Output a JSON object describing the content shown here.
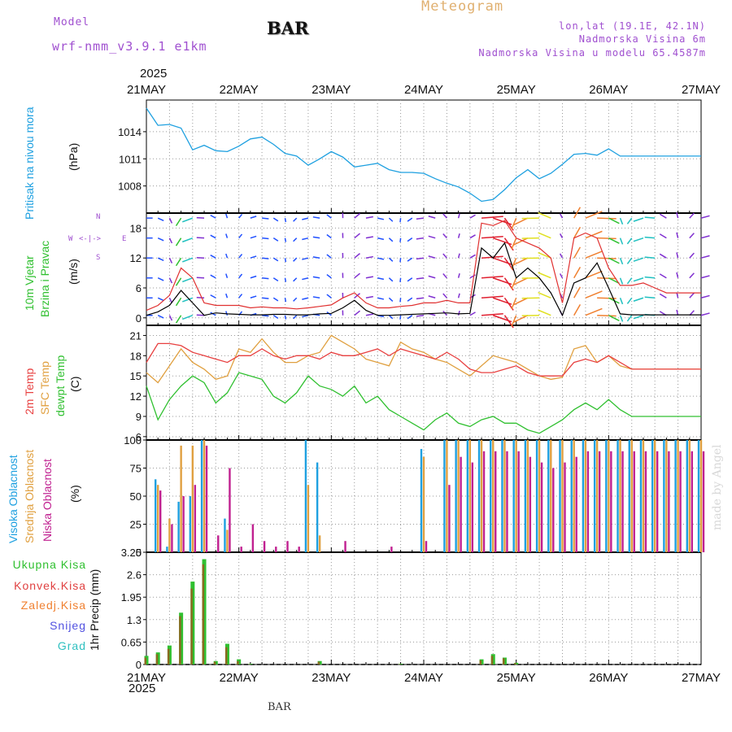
{
  "header": {
    "model_label": "Model",
    "model_name": "wrf-nmm_v3.9.1 e1km",
    "station": "BAR",
    "subtitle": "Meteogram",
    "lonlat": "lon,lat (19.1E, 42.1N)",
    "altitude": "Nadmorska Visina 6m",
    "model_altitude": "Nadmorska Visina u modelu 65.4587m",
    "footer_station": "BAR",
    "made_by": "made by Angel"
  },
  "time_axis": {
    "year_top": "2025",
    "year_bottom": "2025",
    "labels": [
      "21MAY",
      "22MAY",
      "23MAY",
      "24MAY",
      "25MAY",
      "26MAY",
      "27MAY"
    ]
  },
  "colors": {
    "pressure": "#1ea0e0",
    "wind_speed": "#000000",
    "gust": "#e03030",
    "t2m": "#e84040",
    "sfc": "#e0a040",
    "dewpt": "#30c030",
    "high_cloud": "#1ea0e0",
    "mid_cloud": "#e0a040",
    "low_cloud": "#c02090",
    "total_precip": "#30c030",
    "conv_precip": "#e04040"
  },
  "panels": {
    "pressure": {
      "label": "Pritisak na nivou mora",
      "unit": "(hPa)"
    },
    "wind": {
      "label1": "10m Vjetar",
      "label2": "Brzina i Pravac",
      "unit": "(m/s)",
      "compass_n": "N",
      "compass_s": "S",
      "compass_w": "W",
      "compass_e": "E"
    },
    "temp": {
      "label1": "2m Temp",
      "label2": "SFC Temp",
      "label3": "dewpt Temp",
      "unit": "(C)"
    },
    "cloud": {
      "label1": "Visoka Oblacnost",
      "label2": "Srednja Oblacnost",
      "label3": "Niska Oblacnost",
      "unit": "(%)"
    },
    "precip": {
      "axis_label": "1hr Precip (mm)",
      "legend": [
        "Ukupna Kisa",
        "Konvek.Kisa",
        "Zaledj.Kisa",
        "Snijeg",
        "Grad"
      ],
      "legend_colors": [
        "#30c030",
        "#e04040",
        "#f08030",
        "#5050e0",
        "#30c0c0"
      ]
    }
  },
  "chart_data": [
    {
      "type": "line",
      "title": "",
      "ylabel": "Pritisak na nivou mora (hPa)",
      "ylim": [
        1005,
        1017.5
      ],
      "yticks": [
        1008,
        1011,
        1014
      ],
      "x": [
        0,
        3,
        6,
        9,
        12,
        15,
        18,
        21,
        24,
        27,
        30,
        33,
        36,
        39,
        42,
        45,
        48,
        51,
        54,
        57,
        60,
        63,
        66,
        69,
        72,
        75,
        78,
        81,
        84,
        87,
        90,
        93,
        96,
        99,
        102,
        105,
        108,
        111,
        114,
        117,
        120,
        123,
        126,
        129,
        132,
        135,
        138,
        141,
        144
      ],
      "series": [
        {
          "name": "",
          "values": [
            1016.6,
            1014.7,
            1014.8,
            1014.4,
            1012.0,
            1012.5,
            1011.9,
            1011.8,
            1012.4,
            1013.2,
            1013.4,
            1012.6,
            1011.6,
            1011.3,
            1010.3,
            1011.0,
            1011.8,
            1011.2,
            1010.1,
            1010.3,
            1010.5,
            1009.8,
            1009.5,
            1009.5,
            1009.4,
            1008.8,
            1008.3,
            1007.9,
            1007.2,
            1006.3,
            1006.5,
            1007.6,
            1008.9,
            1009.8,
            1008.8,
            1009.4,
            1010.4,
            1011.5,
            1011.6,
            1011.4,
            1012.1,
            1011.3,
            1011.3,
            1011.3,
            1011.3,
            1011.3,
            1011.3,
            1011.3,
            1011.3
          ]
        }
      ]
    },
    {
      "type": "line",
      "title": "",
      "ylabel": "10m Vjetar Brzina i Pravac (m/s)",
      "ylim": [
        -1.5,
        21
      ],
      "yticks": [
        0,
        6,
        12,
        18
      ],
      "x": [
        0,
        3,
        6,
        9,
        12,
        15,
        18,
        21,
        24,
        27,
        30,
        33,
        36,
        39,
        42,
        45,
        48,
        51,
        54,
        57,
        60,
        63,
        66,
        69,
        72,
        75,
        78,
        81,
        84,
        87,
        90,
        93,
        96,
        99,
        102,
        105,
        108,
        111,
        114,
        117,
        120,
        123,
        126,
        129,
        132,
        135,
        138,
        141,
        144
      ],
      "series": [
        {
          "name": "",
          "values": [
            0.5,
            1.2,
            2.5,
            5.5,
            3.0,
            0.5,
            1.0,
            0.8,
            0.7,
            0.6,
            0.6,
            0.7,
            0.7,
            0.6,
            0.6,
            0.8,
            0.9,
            2.0,
            3.5,
            1.5,
            0.5,
            0.5,
            0.6,
            0.7,
            0.8,
            0.9,
            1.0,
            0.8,
            0.9,
            14.0,
            12.0,
            15.0,
            8.0,
            10.0,
            8.0,
            5.0,
            0.5,
            7.0,
            8.0,
            11.0,
            6.0,
            0.8,
            0.6,
            0.6,
            0.6,
            0.6,
            0.6,
            0.6,
            0.6
          ]
        },
        {
          "name": "",
          "values": [
            1.5,
            2.5,
            4.5,
            10.0,
            8.0,
            3.0,
            2.5,
            2.5,
            2.5,
            2.0,
            2.2,
            2.0,
            2.0,
            1.8,
            2.0,
            2.3,
            2.6,
            4.0,
            5.0,
            3.0,
            2.0,
            2.0,
            2.3,
            2.5,
            3.0,
            3.0,
            3.5,
            3.0,
            3.0,
            19.0,
            18.5,
            19.5,
            16.0,
            15.0,
            14.0,
            12.0,
            3.0,
            16.0,
            17.0,
            16.0,
            10.0,
            6.5,
            6.5,
            7.0,
            6.0,
            5.0,
            5.0,
            5.0,
            5.0
          ]
        }
      ]
    },
    {
      "type": "line",
      "title": "",
      "ylabel": "2m Temp / SFC Temp / dewpt Temp (C)",
      "ylim": [
        5.5,
        22.5
      ],
      "yticks": [
        6,
        9,
        12,
        15,
        18,
        21
      ],
      "x": [
        0,
        3,
        6,
        9,
        12,
        15,
        18,
        21,
        24,
        27,
        30,
        33,
        36,
        39,
        42,
        45,
        48,
        51,
        54,
        57,
        60,
        63,
        66,
        69,
        72,
        75,
        78,
        81,
        84,
        87,
        90,
        93,
        96,
        99,
        102,
        105,
        108,
        111,
        114,
        117,
        120,
        123,
        126,
        129,
        132,
        135,
        138,
        141,
        144
      ],
      "series": [
        {
          "name": "2m Temp",
          "values": [
            17.0,
            19.8,
            19.8,
            19.5,
            18.5,
            18.0,
            17.5,
            17.0,
            18.0,
            18.0,
            19.0,
            18.0,
            17.5,
            18.0,
            18.0,
            17.5,
            18.5,
            18.0,
            18.0,
            18.5,
            19.0,
            18.0,
            19.0,
            18.5,
            18.0,
            17.5,
            18.5,
            17.5,
            16.0,
            15.5,
            15.5,
            16.0,
            16.5,
            15.5,
            15.0,
            15.0,
            15.0,
            17.0,
            17.5,
            17.0,
            18.0,
            17.0,
            16.0,
            16.0,
            16.0,
            16.0,
            16.0,
            16.0,
            16.0
          ]
        },
        {
          "name": "SFC Temp",
          "values": [
            15.5,
            14.0,
            16.5,
            19.0,
            17.0,
            16.0,
            14.5,
            15.0,
            19.0,
            18.5,
            20.5,
            18.5,
            17.0,
            17.0,
            18.0,
            18.5,
            21.0,
            20.0,
            19.0,
            17.5,
            17.0,
            16.5,
            20.0,
            19.0,
            18.5,
            17.5,
            17.0,
            16.0,
            15.0,
            16.5,
            18.0,
            17.5,
            17.0,
            16.0,
            15.0,
            14.5,
            14.8,
            19.0,
            19.5,
            17.0,
            18.0,
            16.5,
            16.0,
            16.0,
            16.0,
            16.0,
            16.0,
            16.0,
            16.0
          ]
        },
        {
          "name": "dewpt Temp",
          "values": [
            13.5,
            8.5,
            11.5,
            13.5,
            15.0,
            14.0,
            11.0,
            12.5,
            15.5,
            15.0,
            14.5,
            12.0,
            11.0,
            12.5,
            15.0,
            13.5,
            13.0,
            12.0,
            13.5,
            11.0,
            12.0,
            10.0,
            9.0,
            8.0,
            7.0,
            8.5,
            9.5,
            8.0,
            7.5,
            8.5,
            9.0,
            8.0,
            8.0,
            7.0,
            6.5,
            7.5,
            8.5,
            10.0,
            11.0,
            10.0,
            11.5,
            10.0,
            9.0,
            9.0,
            9.0,
            9.0,
            9.0,
            9.0,
            9.0
          ]
        }
      ]
    },
    {
      "type": "bar",
      "title": "",
      "ylabel": "Visoka / Srednja / Niska Oblacnost (%)",
      "ylim": [
        0,
        100
      ],
      "yticks": [
        0,
        25,
        50,
        75,
        100
      ],
      "x": [
        0,
        3,
        6,
        9,
        12,
        15,
        18,
        21,
        24,
        27,
        30,
        33,
        36,
        39,
        42,
        45,
        48,
        51,
        54,
        57,
        60,
        63,
        66,
        69,
        72,
        75,
        78,
        81,
        84,
        87,
        90,
        93,
        96,
        99,
        102,
        105,
        108,
        111,
        114,
        117,
        120,
        123,
        126,
        129,
        132,
        135,
        138,
        141,
        144
      ],
      "series": [
        {
          "name": "Visoka Oblacnost",
          "values": [
            0,
            65,
            5,
            45,
            50,
            100,
            0,
            30,
            0,
            0,
            0,
            0,
            0,
            0,
            100,
            80,
            0,
            0,
            0,
            0,
            0,
            0,
            0,
            0,
            92,
            0,
            100,
            100,
            100,
            100,
            100,
            100,
            100,
            100,
            100,
            100,
            100,
            100,
            100,
            100,
            100,
            100,
            100,
            100,
            100,
            100,
            100,
            100,
            100
          ]
        },
        {
          "name": "Srednja Oblacnost",
          "values": [
            0,
            60,
            30,
            95,
            95,
            100,
            0,
            20,
            0,
            0,
            0,
            0,
            0,
            0,
            60,
            15,
            0,
            0,
            0,
            0,
            0,
            0,
            0,
            0,
            85,
            0,
            100,
            100,
            100,
            100,
            100,
            100,
            100,
            100,
            100,
            100,
            100,
            100,
            100,
            100,
            100,
            100,
            100,
            100,
            100,
            100,
            100,
            100,
            100
          ]
        },
        {
          "name": "Niska Oblacnost",
          "values": [
            0,
            55,
            25,
            50,
            60,
            95,
            15,
            75,
            5,
            25,
            10,
            5,
            10,
            5,
            0,
            0,
            0,
            10,
            0,
            0,
            0,
            5,
            0,
            0,
            10,
            0,
            60,
            85,
            80,
            90,
            90,
            90,
            90,
            85,
            80,
            75,
            80,
            85,
            90,
            90,
            90,
            90,
            90,
            90,
            90,
            90,
            90,
            90,
            90
          ]
        }
      ]
    },
    {
      "type": "bar",
      "title": "",
      "ylabel": "1hr Precip (mm)",
      "ylim": [
        0,
        3.25
      ],
      "yticks": [
        0,
        0.65,
        1.3,
        1.95,
        2.6,
        3.25
      ],
      "x": [
        0,
        3,
        6,
        9,
        12,
        15,
        18,
        21,
        24,
        27,
        30,
        33,
        36,
        39,
        42,
        45,
        48,
        51,
        54,
        57,
        60,
        63,
        66,
        69,
        72,
        75,
        78,
        81,
        84,
        87,
        90,
        93,
        96,
        99,
        102,
        105,
        108,
        111,
        114,
        117,
        120,
        123,
        126,
        129,
        132,
        135,
        138,
        141,
        144
      ],
      "series": [
        {
          "name": "Ukupna Kisa",
          "values": [
            0.25,
            0.35,
            0.55,
            1.5,
            2.4,
            3.05,
            0.1,
            0.6,
            0.15,
            0.02,
            0,
            0,
            0,
            0,
            0,
            0.1,
            0,
            0,
            0,
            0,
            0,
            0,
            0.02,
            0,
            0,
            0,
            0,
            0,
            0,
            0.15,
            0.3,
            0.2,
            0.05,
            0,
            0,
            0,
            0,
            0,
            0,
            0,
            0,
            0,
            0,
            0,
            0,
            0,
            0,
            0,
            0
          ]
        },
        {
          "name": "Konvek.Kisa",
          "values": [
            0.2,
            0.3,
            0.45,
            1.4,
            2.2,
            2.9,
            0.08,
            0.5,
            0.1,
            0.01,
            0,
            0,
            0,
            0,
            0,
            0.08,
            0,
            0,
            0,
            0,
            0,
            0,
            0.01,
            0,
            0,
            0,
            0,
            0,
            0,
            0.12,
            0.25,
            0.18,
            0.04,
            0,
            0,
            0,
            0,
            0,
            0,
            0,
            0,
            0,
            0,
            0,
            0,
            0,
            0,
            0,
            0
          ]
        }
      ]
    }
  ]
}
